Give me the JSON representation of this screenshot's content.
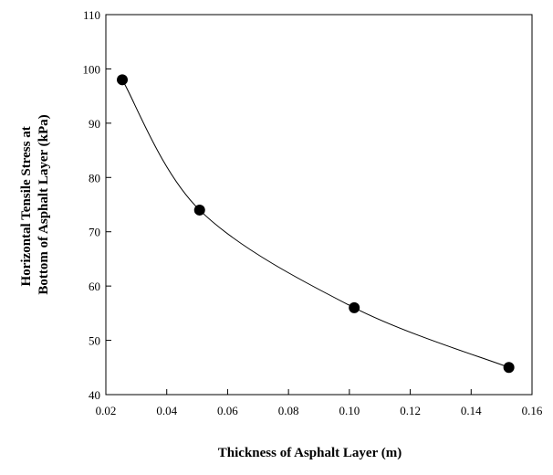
{
  "chart_data": {
    "type": "line",
    "title": "",
    "xlabel": "Thickness of Asphalt Layer (m)",
    "ylabel_lines": [
      "Horizontal Tensile Stress at",
      "Bottom of Asphalt Layer (kPa)"
    ],
    "xlim": [
      0.02,
      0.16
    ],
    "ylim": [
      40,
      110
    ],
    "x_ticks": [
      "0.02",
      "0.04",
      "0.06",
      "0.08",
      "0.10",
      "0.12",
      "0.14",
      "0.16"
    ],
    "y_ticks": [
      "40",
      "50",
      "60",
      "70",
      "80",
      "90",
      "100",
      "110"
    ],
    "grid": false,
    "legend": false,
    "marker": "filled-circle",
    "line_style": "smooth",
    "colors": {
      "line": "#000000",
      "marker": "#000000",
      "background": "#ffffff"
    },
    "series": [
      {
        "x": [
          0.0254,
          0.0508,
          0.1016,
          0.1524
        ],
        "y": [
          98,
          74,
          56,
          45
        ]
      }
    ]
  }
}
